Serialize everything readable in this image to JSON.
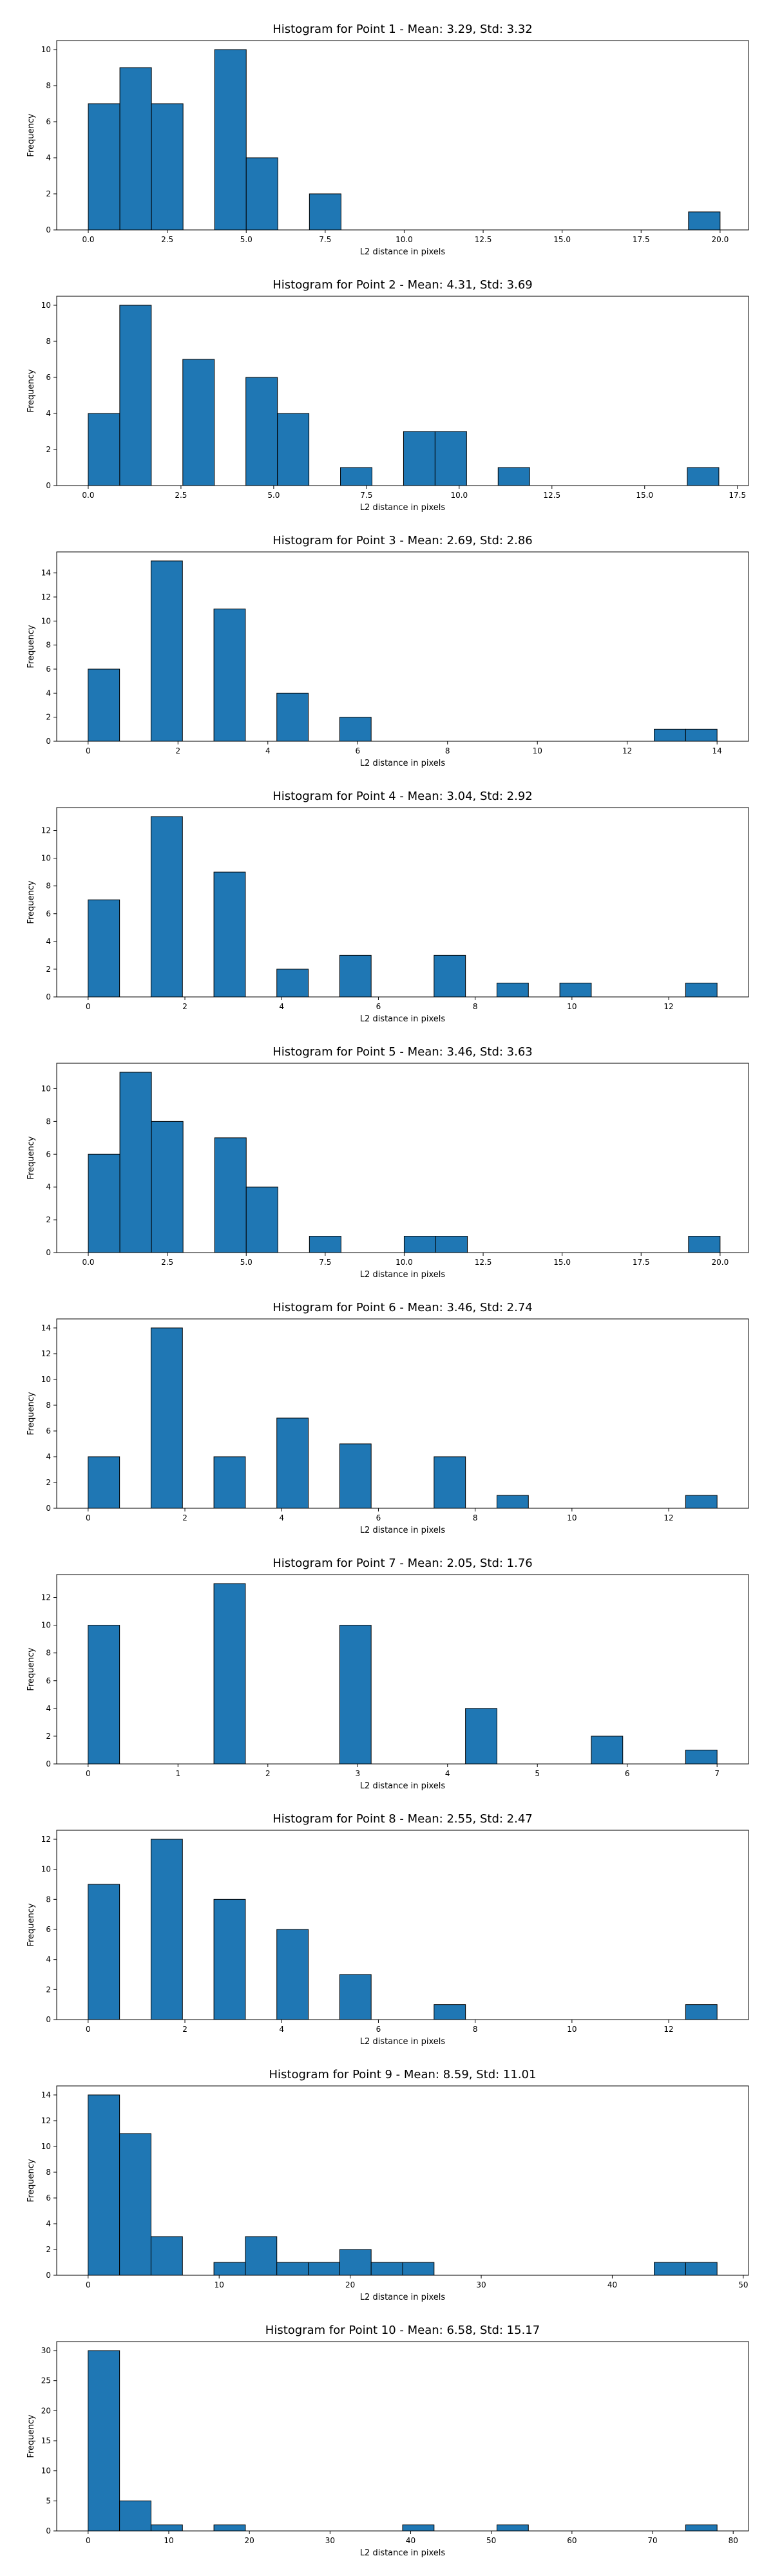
{
  "colors": {
    "bar": "#1f77b4",
    "edge": "#000000"
  },
  "chart_data": [
    {
      "type": "bar",
      "title": "Histogram for Point 1 - Mean: 3.29, Std: 3.32",
      "xlabel": "L2 distance in pixels",
      "ylabel": "Frequency",
      "xlim": [
        -1.0,
        20.9
      ],
      "ylim": [
        0,
        10.5
      ],
      "xticks": [
        0.0,
        2.5,
        5.0,
        7.5,
        10.0,
        12.5,
        15.0,
        17.5,
        20.0
      ],
      "xtick_labels": [
        "0.0",
        "2.5",
        "5.0",
        "7.5",
        "10.0",
        "12.5",
        "15.0",
        "17.5",
        "20.0"
      ],
      "yticks": [
        0,
        2,
        4,
        6,
        8,
        10
      ],
      "bins": [
        {
          "x0": 0.0,
          "x1": 1.0,
          "count": 7
        },
        {
          "x0": 1.0,
          "x1": 2.0,
          "count": 9
        },
        {
          "x0": 2.0,
          "x1": 3.0,
          "count": 7
        },
        {
          "x0": 4.0,
          "x1": 5.0,
          "count": 10
        },
        {
          "x0": 5.0,
          "x1": 6.0,
          "count": 4
        },
        {
          "x0": 7.0,
          "x1": 8.0,
          "count": 2
        },
        {
          "x0": 19.0,
          "x1": 20.0,
          "count": 1
        }
      ]
    },
    {
      "type": "bar",
      "title": "Histogram for Point 2 - Mean: 4.31, Std: 3.69",
      "xlabel": "L2 distance in pixels",
      "ylabel": "Frequency",
      "xlim": [
        -0.85,
        17.8
      ],
      "ylim": [
        0,
        10.5
      ],
      "xticks": [
        0.0,
        2.5,
        5.0,
        7.5,
        10.0,
        12.5,
        15.0,
        17.5
      ],
      "xtick_labels": [
        "0.0",
        "2.5",
        "5.0",
        "7.5",
        "10.0",
        "12.5",
        "15.0",
        "17.5"
      ],
      "yticks": [
        0,
        2,
        4,
        6,
        8,
        10
      ],
      "bins": [
        {
          "x0": 0.0,
          "x1": 0.85,
          "count": 4
        },
        {
          "x0": 0.85,
          "x1": 1.7,
          "count": 10
        },
        {
          "x0": 2.55,
          "x1": 3.4,
          "count": 7
        },
        {
          "x0": 4.25,
          "x1": 5.1,
          "count": 6
        },
        {
          "x0": 5.1,
          "x1": 5.95,
          "count": 4
        },
        {
          "x0": 6.8,
          "x1": 7.65,
          "count": 1
        },
        {
          "x0": 8.5,
          "x1": 9.35,
          "count": 3
        },
        {
          "x0": 9.35,
          "x1": 10.2,
          "count": 3
        },
        {
          "x0": 11.05,
          "x1": 11.9,
          "count": 1
        },
        {
          "x0": 16.15,
          "x1": 17.0,
          "count": 1
        }
      ]
    },
    {
      "type": "bar",
      "title": "Histogram for Point 3 - Mean: 2.69, Std: 2.86",
      "xlabel": "L2 distance in pixels",
      "ylabel": "Frequency",
      "xlim": [
        -0.7,
        14.7
      ],
      "ylim": [
        0,
        15.75
      ],
      "xticks": [
        0,
        2,
        4,
        6,
        8,
        10,
        12,
        14
      ],
      "xtick_labels": [
        "0",
        "2",
        "4",
        "6",
        "8",
        "10",
        "12",
        "14"
      ],
      "yticks": [
        0,
        2,
        4,
        6,
        8,
        10,
        12,
        14
      ],
      "bins": [
        {
          "x0": 0.0,
          "x1": 0.7,
          "count": 6
        },
        {
          "x0": 1.4,
          "x1": 2.1,
          "count": 15
        },
        {
          "x0": 2.8,
          "x1": 3.5,
          "count": 11
        },
        {
          "x0": 4.2,
          "x1": 4.9,
          "count": 4
        },
        {
          "x0": 5.6,
          "x1": 6.3,
          "count": 2
        },
        {
          "x0": 12.6,
          "x1": 13.3,
          "count": 1
        },
        {
          "x0": 13.3,
          "x1": 14.0,
          "count": 1
        }
      ]
    },
    {
      "type": "bar",
      "title": "Histogram for Point 4 - Mean: 3.04, Std: 2.92",
      "xlabel": "L2 distance in pixels",
      "ylabel": "Frequency",
      "xlim": [
        -0.65,
        13.65
      ],
      "ylim": [
        0,
        13.65
      ],
      "xticks": [
        0,
        2,
        4,
        6,
        8,
        10,
        12
      ],
      "xtick_labels": [
        "0",
        "2",
        "4",
        "6",
        "8",
        "10",
        "12"
      ],
      "yticks": [
        0,
        2,
        4,
        6,
        8,
        10,
        12
      ],
      "bins": [
        {
          "x0": 0.0,
          "x1": 0.65,
          "count": 7
        },
        {
          "x0": 1.3,
          "x1": 1.95,
          "count": 13
        },
        {
          "x0": 2.6,
          "x1": 3.25,
          "count": 9
        },
        {
          "x0": 3.9,
          "x1": 4.55,
          "count": 2
        },
        {
          "x0": 5.2,
          "x1": 5.85,
          "count": 3
        },
        {
          "x0": 7.15,
          "x1": 7.8,
          "count": 3
        },
        {
          "x0": 8.45,
          "x1": 9.1,
          "count": 1
        },
        {
          "x0": 9.75,
          "x1": 10.4,
          "count": 1
        },
        {
          "x0": 12.35,
          "x1": 13.0,
          "count": 1
        }
      ]
    },
    {
      "type": "bar",
      "title": "Histogram for Point 5 - Mean: 3.46, Std: 3.63",
      "xlabel": "L2 distance in pixels",
      "ylabel": "Frequency",
      "xlim": [
        -1.0,
        20.9
      ],
      "ylim": [
        0,
        11.55
      ],
      "xticks": [
        0.0,
        2.5,
        5.0,
        7.5,
        10.0,
        12.5,
        15.0,
        17.5,
        20.0
      ],
      "xtick_labels": [
        "0.0",
        "2.5",
        "5.0",
        "7.5",
        "10.0",
        "12.5",
        "15.0",
        "17.5",
        "20.0"
      ],
      "yticks": [
        0,
        2,
        4,
        6,
        8,
        10
      ],
      "bins": [
        {
          "x0": 0.0,
          "x1": 1.0,
          "count": 6
        },
        {
          "x0": 1.0,
          "x1": 2.0,
          "count": 11
        },
        {
          "x0": 2.0,
          "x1": 3.0,
          "count": 8
        },
        {
          "x0": 4.0,
          "x1": 5.0,
          "count": 7
        },
        {
          "x0": 5.0,
          "x1": 6.0,
          "count": 4
        },
        {
          "x0": 7.0,
          "x1": 8.0,
          "count": 1
        },
        {
          "x0": 10.0,
          "x1": 11.0,
          "count": 1
        },
        {
          "x0": 11.0,
          "x1": 12.0,
          "count": 1
        },
        {
          "x0": 19.0,
          "x1": 20.0,
          "count": 1
        }
      ]
    },
    {
      "type": "bar",
      "title": "Histogram for Point 6 - Mean: 3.46, Std: 2.74",
      "xlabel": "L2 distance in pixels",
      "ylabel": "Frequency",
      "xlim": [
        -0.65,
        13.65
      ],
      "ylim": [
        0,
        14.7
      ],
      "xticks": [
        0,
        2,
        4,
        6,
        8,
        10,
        12
      ],
      "xtick_labels": [
        "0",
        "2",
        "4",
        "6",
        "8",
        "10",
        "12"
      ],
      "yticks": [
        0,
        2,
        4,
        6,
        8,
        10,
        12,
        14
      ],
      "bins": [
        {
          "x0": 0.0,
          "x1": 0.65,
          "count": 4
        },
        {
          "x0": 1.3,
          "x1": 1.95,
          "count": 14
        },
        {
          "x0": 2.6,
          "x1": 3.25,
          "count": 4
        },
        {
          "x0": 3.9,
          "x1": 4.55,
          "count": 7
        },
        {
          "x0": 5.2,
          "x1": 5.85,
          "count": 5
        },
        {
          "x0": 7.15,
          "x1": 7.8,
          "count": 4
        },
        {
          "x0": 8.45,
          "x1": 9.1,
          "count": 1
        },
        {
          "x0": 12.35,
          "x1": 13.0,
          "count": 1
        }
      ]
    },
    {
      "type": "bar",
      "title": "Histogram for Point 7 - Mean: 2.05, Std: 1.76",
      "xlabel": "L2 distance in pixels",
      "ylabel": "Frequency",
      "xlim": [
        -0.35,
        7.35
      ],
      "ylim": [
        0,
        13.65
      ],
      "xticks": [
        0,
        1,
        2,
        3,
        4,
        5,
        6,
        7
      ],
      "xtick_labels": [
        "0",
        "1",
        "2",
        "3",
        "4",
        "5",
        "6",
        "7"
      ],
      "yticks": [
        0,
        2,
        4,
        6,
        8,
        10,
        12
      ],
      "bins": [
        {
          "x0": 0.0,
          "x1": 0.35,
          "count": 10
        },
        {
          "x0": 1.4,
          "x1": 1.75,
          "count": 13
        },
        {
          "x0": 2.8,
          "x1": 3.15,
          "count": 10
        },
        {
          "x0": 4.2,
          "x1": 4.55,
          "count": 4
        },
        {
          "x0": 5.6,
          "x1": 5.95,
          "count": 2
        },
        {
          "x0": 6.65,
          "x1": 7.0,
          "count": 1
        }
      ]
    },
    {
      "type": "bar",
      "title": "Histogram for Point 8 - Mean: 2.55, Std: 2.47",
      "xlabel": "L2 distance in pixels",
      "ylabel": "Frequency",
      "xlim": [
        -0.65,
        13.65
      ],
      "ylim": [
        0,
        12.6
      ],
      "xticks": [
        0,
        2,
        4,
        6,
        8,
        10,
        12
      ],
      "xtick_labels": [
        "0",
        "2",
        "4",
        "6",
        "8",
        "10",
        "12"
      ],
      "yticks": [
        0,
        2,
        4,
        6,
        8,
        10,
        12
      ],
      "bins": [
        {
          "x0": 0.0,
          "x1": 0.65,
          "count": 9
        },
        {
          "x0": 1.3,
          "x1": 1.95,
          "count": 12
        },
        {
          "x0": 2.6,
          "x1": 3.25,
          "count": 8
        },
        {
          "x0": 3.9,
          "x1": 4.55,
          "count": 6
        },
        {
          "x0": 5.2,
          "x1": 5.85,
          "count": 3
        },
        {
          "x0": 7.15,
          "x1": 7.8,
          "count": 1
        },
        {
          "x0": 12.35,
          "x1": 13.0,
          "count": 1
        }
      ]
    },
    {
      "type": "bar",
      "title": "Histogram for Point 9 - Mean: 8.59, Std: 11.01",
      "xlabel": "L2 distance in pixels",
      "ylabel": "Frequency",
      "xlim": [
        -2.4,
        50.4
      ],
      "ylim": [
        0,
        14.7
      ],
      "xticks": [
        0,
        10,
        20,
        30,
        40,
        50
      ],
      "xtick_labels": [
        "0",
        "10",
        "20",
        "30",
        "40",
        "50"
      ],
      "yticks": [
        0,
        2,
        4,
        6,
        8,
        10,
        12,
        14
      ],
      "bins": [
        {
          "x0": 0.0,
          "x1": 2.4,
          "count": 14
        },
        {
          "x0": 2.4,
          "x1": 4.8,
          "count": 11
        },
        {
          "x0": 4.8,
          "x1": 7.2,
          "count": 3
        },
        {
          "x0": 9.6,
          "x1": 12.0,
          "count": 1
        },
        {
          "x0": 12.0,
          "x1": 14.4,
          "count": 3
        },
        {
          "x0": 14.4,
          "x1": 16.8,
          "count": 1
        },
        {
          "x0": 16.8,
          "x1": 19.2,
          "count": 1
        },
        {
          "x0": 19.2,
          "x1": 21.6,
          "count": 2
        },
        {
          "x0": 21.6,
          "x1": 24.0,
          "count": 1
        },
        {
          "x0": 24.0,
          "x1": 26.4,
          "count": 1
        },
        {
          "x0": 43.2,
          "x1": 45.6,
          "count": 1
        },
        {
          "x0": 45.6,
          "x1": 48.0,
          "count": 1
        }
      ]
    },
    {
      "type": "bar",
      "title": "Histogram for Point 10 - Mean: 6.58, Std: 15.17",
      "xlabel": "L2 distance in pixels",
      "ylabel": "Frequency",
      "xlim": [
        -3.9,
        81.9
      ],
      "ylim": [
        0,
        31.5
      ],
      "xticks": [
        0,
        10,
        20,
        30,
        40,
        50,
        60,
        70,
        80
      ],
      "xtick_labels": [
        "0",
        "10",
        "20",
        "30",
        "40",
        "50",
        "60",
        "70",
        "80"
      ],
      "yticks": [
        0,
        5,
        10,
        15,
        20,
        25,
        30
      ],
      "bins": [
        {
          "x0": 0.0,
          "x1": 3.9,
          "count": 30
        },
        {
          "x0": 3.9,
          "x1": 7.8,
          "count": 5
        },
        {
          "x0": 7.8,
          "x1": 11.7,
          "count": 1
        },
        {
          "x0": 15.6,
          "x1": 19.5,
          "count": 1
        },
        {
          "x0": 39.0,
          "x1": 42.9,
          "count": 1
        },
        {
          "x0": 50.7,
          "x1": 54.6,
          "count": 1
        },
        {
          "x0": 74.1,
          "x1": 78.0,
          "count": 1
        }
      ]
    }
  ]
}
